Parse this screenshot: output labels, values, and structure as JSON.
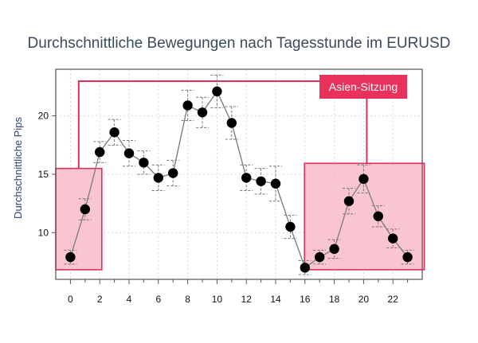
{
  "title": "Durchschnittliche Bewegungen nach Tagesstunde im EURUSD",
  "annotation": "Asien-Sitzung",
  "colors": {
    "highlight_fill": "#f7b7c6",
    "highlight_stroke": "#e0305a",
    "callout_bg": "#e8325c",
    "point": "#000000",
    "line": "#808080",
    "errorbar": "#777777"
  },
  "chart_data": {
    "type": "scatter",
    "title": "Durchschnittliche Bewegungen nach Tagesstunde im EURUSD",
    "xlabel": "",
    "ylabel": "Durchschnittliche Pips",
    "xlim": [
      -1,
      24
    ],
    "ylim": [
      6,
      24
    ],
    "grid": true,
    "x_ticks": [
      0,
      2,
      4,
      6,
      8,
      10,
      12,
      14,
      16,
      18,
      20,
      22
    ],
    "y_ticks": [
      10,
      15,
      20
    ],
    "x": [
      0,
      1,
      2,
      3,
      4,
      5,
      6,
      7,
      8,
      9,
      10,
      11,
      12,
      13,
      14,
      15,
      16,
      17,
      18,
      19,
      20,
      21,
      22,
      23
    ],
    "y": [
      7.9,
      12.0,
      16.9,
      18.6,
      16.8,
      16.0,
      14.7,
      15.1,
      20.9,
      20.3,
      22.1,
      19.4,
      14.7,
      14.4,
      14.2,
      10.5,
      7.0,
      7.9,
      8.6,
      12.7,
      14.6,
      11.4,
      9.5,
      7.9
    ],
    "error": [
      0.6,
      0.9,
      0.9,
      1.1,
      1.1,
      1.0,
      1.1,
      1.1,
      1.3,
      1.3,
      1.4,
      1.4,
      1.1,
      1.1,
      1.5,
      1.0,
      0.6,
      0.6,
      0.8,
      1.1,
      1.2,
      0.9,
      0.8,
      0.6
    ],
    "highlighted_hours": [
      [
        0,
        1
      ],
      [
        17,
        23
      ]
    ]
  }
}
